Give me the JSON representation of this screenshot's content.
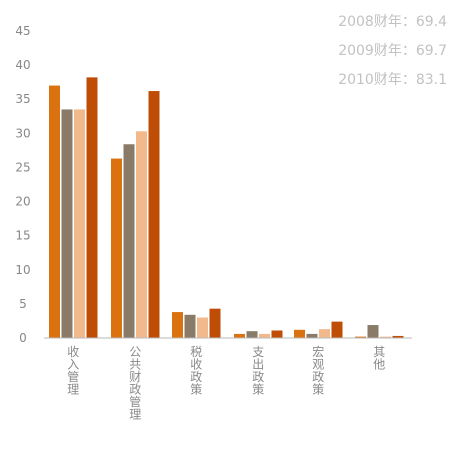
{
  "chart_data": {
    "type": "bar",
    "categories": [
      "收入管理",
      "公共财政管理",
      "税收政策",
      "支出政策",
      "宏观政策",
      "其他"
    ],
    "series": [
      {
        "color": "#d9720f",
        "values": [
          37.0,
          26.3,
          3.8,
          0.6,
          1.2,
          0.2
        ]
      },
      {
        "color": "#8a7b68",
        "values": [
          33.5,
          28.4,
          3.4,
          1.0,
          0.6,
          1.9
        ]
      },
      {
        "color": "#f2b98c",
        "values": [
          33.5,
          30.3,
          3.0,
          0.6,
          1.3,
          0.2
        ]
      },
      {
        "color": "#bf4d06",
        "values": [
          38.2,
          36.2,
          4.3,
          1.1,
          2.4,
          0.3
        ]
      }
    ],
    "y_ticks": [
      0,
      5,
      10,
      15,
      20,
      25,
      30,
      35,
      40,
      45
    ],
    "ylim": [
      0,
      45
    ],
    "grid": false,
    "annotations": [
      "2008财年：69.4",
      "2009财年：69.7",
      "2010财年：83.1"
    ],
    "title": "",
    "xlabel": "",
    "ylabel": ""
  }
}
